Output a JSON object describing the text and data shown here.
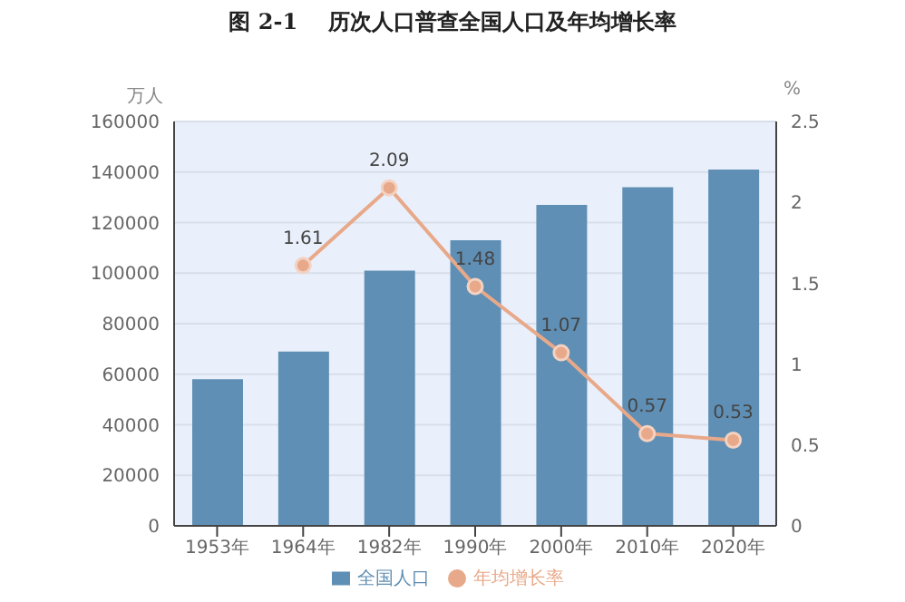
{
  "chart_data": {
    "type": "bar",
    "title": "图 2-1    历次人口普查全国人口及年均增长率",
    "ylabel": "万人",
    "y2label": "%",
    "categories": [
      "1953年",
      "1964年",
      "1982年",
      "1990年",
      "2000年",
      "2010年",
      "2020年"
    ],
    "series": [
      {
        "name": "全国人口",
        "color": "#5f8fb4",
        "values": [
          58000,
          69000,
          101000,
          113000,
          127000,
          134000,
          141000
        ]
      },
      {
        "name": "年均增长率",
        "type": "line",
        "axis": "y2",
        "color": "#e8a98a",
        "marker": "circle",
        "values": [
          null,
          1.61,
          2.09,
          1.48,
          1.07,
          0.57,
          0.53
        ],
        "value_labels": [
          null,
          "1.61",
          "2.09",
          "1.48",
          "1.07",
          "0.57",
          "0.53"
        ]
      }
    ],
    "ylim": [
      0,
      160000
    ],
    "yticks": [
      0,
      20000,
      40000,
      60000,
      80000,
      100000,
      120000,
      140000,
      160000
    ],
    "y2lim": [
      0,
      2.5
    ],
    "y2ticks": [
      0,
      0.5,
      1,
      1.5,
      2,
      2.5
    ],
    "grid": "y",
    "legend": "bottom"
  }
}
